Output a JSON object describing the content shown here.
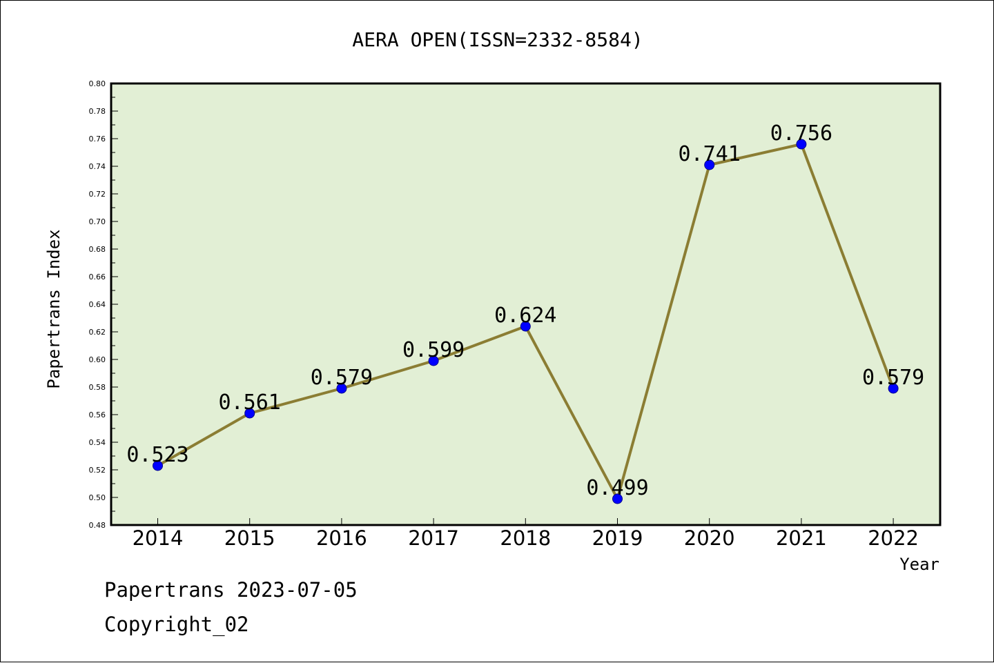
{
  "chart_data": {
    "type": "line",
    "title": "AERA OPEN(ISSN=2332-8584)",
    "xlabel": "Year",
    "ylabel": "Papertrans Index",
    "categories": [
      "2014",
      "2015",
      "2016",
      "2017",
      "2018",
      "2019",
      "2020",
      "2021",
      "2022"
    ],
    "series": [
      {
        "values": [
          0.523,
          0.561,
          0.579,
          0.599,
          0.624,
          0.499,
          0.741,
          0.756,
          0.579
        ],
        "labels": [
          "0.523",
          "0.561",
          "0.579",
          "0.599",
          "0.624",
          "0.499",
          "0.741",
          "0.756",
          "0.579"
        ]
      }
    ],
    "ylim": [
      0.48,
      0.8
    ],
    "yticks": [
      "0.48",
      "0.50",
      "0.52",
      "0.54",
      "0.56",
      "0.58",
      "0.60",
      "0.62",
      "0.64",
      "0.66",
      "0.68",
      "0.70",
      "0.72",
      "0.74",
      "0.76",
      "0.78",
      "0.80"
    ],
    "grid": false,
    "colors": {
      "plot_background": "#e2efd5",
      "line": "#8b7d33",
      "marker": "#0000ff"
    }
  },
  "footer": {
    "line1": "Papertrans 2023-07-05",
    "line2": "Copyright_02"
  }
}
